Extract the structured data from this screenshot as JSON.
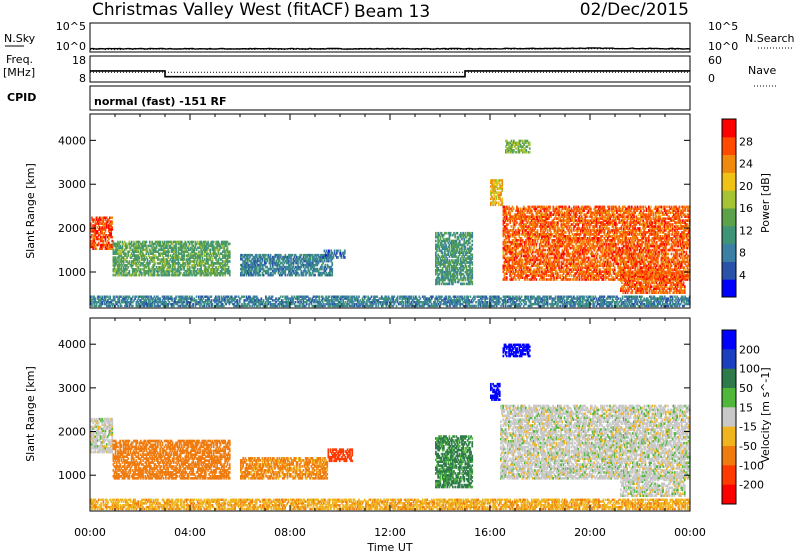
{
  "header": {
    "title": "Christmas Valley West (fitACF)",
    "beam": "Beam 13",
    "date": "02/Dec/2015"
  },
  "top_panels": {
    "nsky_label": "N.Sky",
    "nsky_ticks": [
      "10^5",
      "10^0"
    ],
    "nsearch_label": "N.Search",
    "nsearch_ticks": [
      "10^5",
      "10^0"
    ],
    "freq_label_1": "Freq.",
    "freq_label_2": "[MHz]",
    "freq_ticks": [
      "18",
      "8"
    ],
    "nave_label": "Nave",
    "nave_ticks": [
      "60",
      "0"
    ],
    "cpid_label": "CPID",
    "cpid_text": "normal (fast) -151 RF"
  },
  "chart_data": [
    {
      "type": "line",
      "name": "noise",
      "x": [
        "00:00",
        "04:00",
        "08:00",
        "12:00",
        "16:00",
        "20:00",
        "00:00"
      ],
      "nsky_log": [
        0.4,
        0.4,
        0.4,
        0.4,
        0.4,
        0.5,
        0.4
      ],
      "nsearch_log": [
        0.3,
        0.3,
        0.3,
        0.3,
        0.3,
        0.4,
        0.3
      ]
    },
    {
      "type": "line",
      "name": "frequency",
      "x_hours": [
        0,
        3,
        3,
        15,
        15,
        24
      ],
      "freq_mhz": [
        12.2,
        12.2,
        9.8,
        9.8,
        12.2,
        12.2
      ],
      "ylim": [
        8,
        18
      ],
      "nave": [
        22,
        22,
        22,
        22,
        22,
        22
      ],
      "nave_ylim": [
        0,
        60
      ]
    },
    {
      "type": "heatmap",
      "name": "power",
      "ylabel": "Slant Range [km]",
      "yticks": [
        1000,
        2000,
        3000,
        4000
      ],
      "ylim": [
        180,
        4600
      ],
      "colorbar_label": "Power [dB]",
      "colorbar_ticks": [
        "28",
        "24",
        "20",
        "16",
        "12",
        "8",
        "4"
      ],
      "colorbar_range": [
        0,
        32
      ],
      "regions": [
        {
          "t0": 0.0,
          "t1": 0.9,
          "r0": 1500,
          "r1": 2250,
          "level": 28
        },
        {
          "t0": 0.9,
          "t1": 5.6,
          "r0": 900,
          "r1": 1700,
          "level": 14
        },
        {
          "t0": 6.0,
          "t1": 9.7,
          "r0": 900,
          "r1": 1400,
          "level": 9
        },
        {
          "t0": 9.3,
          "t1": 10.2,
          "r0": 1300,
          "r1": 1500,
          "level": 7
        },
        {
          "t0": 13.8,
          "t1": 15.3,
          "r0": 700,
          "r1": 1900,
          "level": 12
        },
        {
          "t0": 16.0,
          "t1": 16.5,
          "r0": 2500,
          "r1": 3100,
          "level": 22
        },
        {
          "t0": 16.5,
          "t1": 24.0,
          "r0": 800,
          "r1": 2500,
          "level": 27
        },
        {
          "t0": 21.2,
          "t1": 23.8,
          "r0": 500,
          "r1": 1000,
          "level": 27
        },
        {
          "t0": 16.6,
          "t1": 17.6,
          "r0": 3700,
          "r1": 4000,
          "level": 16
        },
        {
          "t0": 0.0,
          "t1": 24.0,
          "r0": 200,
          "r1": 450,
          "level": 9
        }
      ]
    },
    {
      "type": "heatmap",
      "name": "velocity",
      "ylabel": "Slant Range [km]",
      "xlabel": "Time UT",
      "xticks": [
        "00:00",
        "04:00",
        "08:00",
        "12:00",
        "16:00",
        "20:00",
        "00:00"
      ],
      "yticks": [
        1000,
        2000,
        3000,
        4000
      ],
      "ylim": [
        180,
        4600
      ],
      "colorbar_label": "Velocity [m s^-1]",
      "colorbar_ticks": [
        "200",
        "100",
        "50",
        "15",
        "-15",
        "-50",
        "-100",
        "-200"
      ],
      "regions": [
        {
          "t0": 0.0,
          "t1": 0.9,
          "r0": 1500,
          "r1": 2300,
          "velocity": 0
        },
        {
          "t0": 0.9,
          "t1": 5.6,
          "r0": 900,
          "r1": 1800,
          "velocity": -70
        },
        {
          "t0": 6.0,
          "t1": 9.5,
          "r0": 900,
          "r1": 1400,
          "velocity": -60
        },
        {
          "t0": 9.5,
          "t1": 10.5,
          "r0": 1300,
          "r1": 1600,
          "velocity": -150
        },
        {
          "t0": 13.8,
          "t1": 15.3,
          "r0": 700,
          "r1": 1900,
          "velocity": 60
        },
        {
          "t0": 16.0,
          "t1": 16.4,
          "r0": 2700,
          "r1": 3100,
          "velocity": 250
        },
        {
          "t0": 16.4,
          "t1": 24.0,
          "r0": 900,
          "r1": 2600,
          "velocity": 0
        },
        {
          "t0": 21.2,
          "t1": 23.8,
          "r0": 500,
          "r1": 1000,
          "velocity": 0
        },
        {
          "t0": 16.5,
          "t1": 17.6,
          "r0": 3700,
          "r1": 4000,
          "velocity": 250
        },
        {
          "t0": 0.0,
          "t1": 24.0,
          "r0": 200,
          "r1": 450,
          "velocity": -40
        }
      ]
    }
  ]
}
